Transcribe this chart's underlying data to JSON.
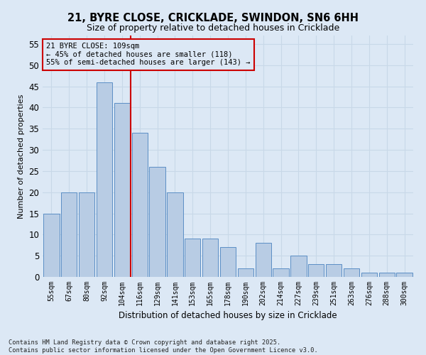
{
  "title1": "21, BYRE CLOSE, CRICKLADE, SWINDON, SN6 6HH",
  "title2": "Size of property relative to detached houses in Cricklade",
  "xlabel": "Distribution of detached houses by size in Cricklade",
  "ylabel": "Number of detached properties",
  "categories": [
    "55sqm",
    "67sqm",
    "80sqm",
    "92sqm",
    "104sqm",
    "116sqm",
    "129sqm",
    "141sqm",
    "153sqm",
    "165sqm",
    "178sqm",
    "190sqm",
    "202sqm",
    "214sqm",
    "227sqm",
    "239sqm",
    "251sqm",
    "263sqm",
    "276sqm",
    "288sqm",
    "300sqm"
  ],
  "values": [
    15,
    20,
    20,
    46,
    41,
    34,
    26,
    20,
    9,
    9,
    7,
    2,
    8,
    2,
    5,
    3,
    3,
    2,
    1,
    1,
    1
  ],
  "bar_color": "#b8cce4",
  "bar_edge_color": "#5b8ec5",
  "grid_color": "#c8d8e8",
  "background_color": "#dce8f5",
  "vline_x": 4.5,
  "vline_color": "#cc0000",
  "annotation_text": "21 BYRE CLOSE: 109sqm\n← 45% of detached houses are smaller (118)\n55% of semi-detached houses are larger (143) →",
  "annotation_box_color": "#cc0000",
  "ylim": [
    0,
    57
  ],
  "yticks": [
    0,
    5,
    10,
    15,
    20,
    25,
    30,
    35,
    40,
    45,
    50,
    55
  ],
  "footer": "Contains HM Land Registry data © Crown copyright and database right 2025.\nContains public sector information licensed under the Open Government Licence v3.0."
}
